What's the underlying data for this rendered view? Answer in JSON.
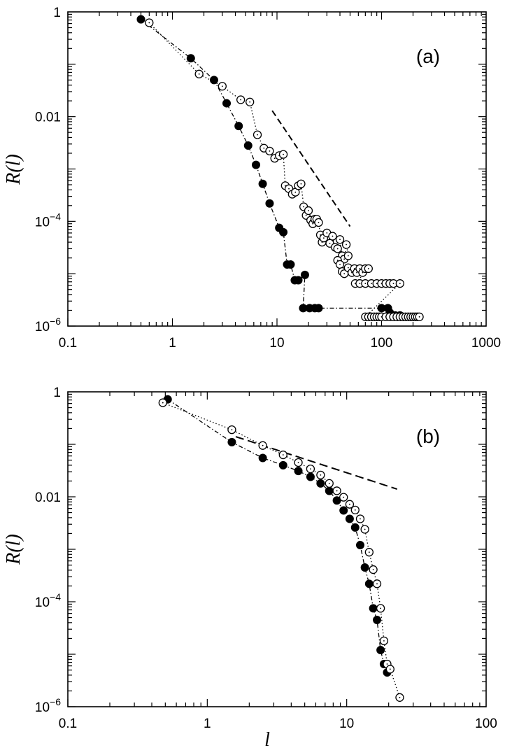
{
  "chart_data": [
    {
      "type": "scatter",
      "panel_label": "(a)",
      "xscale": "log",
      "yscale": "log",
      "xlim": [
        0.1,
        1000
      ],
      "ylim": [
        1e-06,
        1
      ],
      "xticks": [
        "0.1",
        "1",
        "10",
        "100",
        "1000"
      ],
      "yticks": [
        {
          "value": 1,
          "base": "1",
          "exp": ""
        },
        {
          "value": 0.01,
          "base": "0.01",
          "exp": ""
        },
        {
          "value": 0.0001,
          "base": "10",
          "exp": "−4"
        },
        {
          "value": 1e-06,
          "base": "10",
          "exp": "−6"
        }
      ],
      "ylabel": "R(l)",
      "xlabel": "",
      "grid": false,
      "series": [
        {
          "marker": "filled-circle",
          "line": "dash-dot",
          "points": [
            [
              0.5,
              0.72
            ],
            [
              1.5,
              0.13
            ],
            [
              2.5,
              0.05
            ],
            [
              3.3,
              0.018
            ],
            [
              4.3,
              0.0066
            ],
            [
              5.3,
              0.0028
            ],
            [
              6.3,
              0.0012
            ],
            [
              7.3,
              0.00052
            ],
            [
              8.5,
              0.00022
            ],
            [
              10.5,
              7.5e-05
            ],
            [
              11.5,
              6.2e-05
            ],
            [
              12.5,
              1.5e-05
            ],
            [
              13.5,
              1.5e-05
            ],
            [
              14.8,
              7.5e-06
            ],
            [
              16,
              7.5e-06
            ],
            [
              18.5,
              9.5e-06
            ],
            [
              17.8,
              2.2e-06
            ],
            [
              20.5,
              2.2e-06
            ],
            [
              23,
              2.2e-06
            ],
            [
              25,
              2.2e-06
            ],
            [
              100,
              2.2e-06
            ],
            [
              115,
              2.2e-06
            ],
            [
              120,
              1.8e-06
            ],
            [
              135,
              1.6e-06
            ],
            [
              150,
              1.6e-06
            ]
          ]
        },
        {
          "marker": "open-circle",
          "line": "dotted",
          "points": [
            [
              0.6,
              0.62
            ],
            [
              1.8,
              0.065
            ],
            [
              3.0,
              0.038
            ],
            [
              4.5,
              0.021
            ],
            [
              5.5,
              0.019
            ],
            [
              6.5,
              0.0045
            ],
            [
              7.5,
              0.0025
            ],
            [
              8.5,
              0.0022
            ],
            [
              9.5,
              0.0016
            ],
            [
              10.5,
              0.0018
            ],
            [
              11.5,
              0.0019
            ],
            [
              12,
              0.00048
            ],
            [
              13,
              0.00042
            ],
            [
              14,
              0.00033
            ],
            [
              15,
              0.00036
            ],
            [
              16,
              0.00048
            ],
            [
              17,
              0.00052
            ],
            [
              18,
              0.00019
            ],
            [
              19,
              0.00013
            ],
            [
              20,
              0.00016
            ],
            [
              21,
              0.000105
            ],
            [
              22,
              9e-05
            ],
            [
              23,
              0.00011
            ],
            [
              24,
              0.00011
            ],
            [
              25,
              9.5e-05
            ],
            [
              26,
              5.5e-05
            ],
            [
              27,
              4e-05
            ],
            [
              28,
              4.8e-05
            ],
            [
              30,
              6e-05
            ],
            [
              32,
              3.8e-05
            ],
            [
              34,
              5.2e-05
            ],
            [
              36,
              3.2e-05
            ],
            [
              38,
              3e-05
            ],
            [
              40,
              4.5e-05
            ],
            [
              42,
              2.2e-05
            ],
            [
              44,
              1.9e-05
            ],
            [
              46,
              3.6e-05
            ],
            [
              48,
              2.2e-05
            ],
            [
              38,
              1.8e-05
            ],
            [
              40,
              1.5e-05
            ],
            [
              42,
              1.1e-05
            ],
            [
              44,
              1e-05
            ],
            [
              48,
              1.3e-05
            ],
            [
              52,
              1.05e-05
            ],
            [
              55,
              1.25e-05
            ],
            [
              58,
              1.05e-05
            ],
            [
              62,
              1.25e-05
            ],
            [
              66,
              1.05e-05
            ],
            [
              70,
              1.25e-05
            ],
            [
              75,
              1.25e-05
            ],
            [
              56,
              6.5e-06
            ],
            [
              62,
              6.5e-06
            ],
            [
              70,
              6.5e-06
            ],
            [
              80,
              6.5e-06
            ],
            [
              90,
              6.5e-06
            ],
            [
              100,
              6.5e-06
            ],
            [
              110,
              6.5e-06
            ],
            [
              120,
              6.5e-06
            ],
            [
              130,
              6.5e-06
            ],
            [
              150,
              6.5e-06
            ],
            [
              70,
              1.5e-06
            ],
            [
              75,
              1.5e-06
            ],
            [
              80,
              1.5e-06
            ],
            [
              85,
              1.5e-06
            ],
            [
              90,
              1.5e-06
            ],
            [
              95,
              1.5e-06
            ],
            [
              100,
              1.5e-06
            ],
            [
              110,
              1.5e-06
            ],
            [
              120,
              1.5e-06
            ],
            [
              130,
              1.5e-06
            ],
            [
              140,
              1.5e-06
            ],
            [
              150,
              1.5e-06
            ],
            [
              160,
              1.5e-06
            ],
            [
              170,
              1.5e-06
            ],
            [
              180,
              1.5e-06
            ],
            [
              190,
              1.5e-06
            ],
            [
              200,
              1.5e-06
            ],
            [
              210,
              1.5e-06
            ],
            [
              220,
              1.5e-06
            ],
            [
              230,
              1.5e-06
            ]
          ]
        }
      ],
      "reference_line": {
        "style": "dashed",
        "points": [
          [
            9,
            0.013
          ],
          [
            50,
            8e-05
          ]
        ]
      }
    },
    {
      "type": "scatter",
      "panel_label": "(b)",
      "xscale": "log",
      "yscale": "log",
      "xlim": [
        0.1,
        100
      ],
      "ylim": [
        1e-06,
        1
      ],
      "xticks": [
        "0.1",
        "1",
        "10",
        "100"
      ],
      "yticks": [
        {
          "value": 1,
          "base": "1",
          "exp": ""
        },
        {
          "value": 0.01,
          "base": "0.01",
          "exp": ""
        },
        {
          "value": 0.0001,
          "base": "10",
          "exp": "−4"
        },
        {
          "value": 1e-06,
          "base": "10",
          "exp": "−6"
        }
      ],
      "ylabel": "R(l)",
      "xlabel": "l",
      "grid": false,
      "series": [
        {
          "marker": "filled-circle",
          "line": "dash-dot",
          "points": [
            [
              0.52,
              0.72
            ],
            [
              1.5,
              0.11
            ],
            [
              2.5,
              0.055
            ],
            [
              3.5,
              0.04
            ],
            [
              4.5,
              0.031
            ],
            [
              5.5,
              0.024
            ],
            [
              6.5,
              0.018
            ],
            [
              7.5,
              0.013
            ],
            [
              8.5,
              0.0085
            ],
            [
              9.5,
              0.0055
            ],
            [
              10.5,
              0.0038
            ],
            [
              11.5,
              0.0026
            ],
            [
              12.5,
              0.0012
            ],
            [
              13.5,
              0.00045
            ],
            [
              14.5,
              0.00022
            ],
            [
              15.5,
              7.5e-05
            ],
            [
              16.5,
              4.5e-05
            ],
            [
              17.5,
              1.2e-05
            ],
            [
              18.5,
              6.5e-06
            ],
            [
              19.5,
              4.5e-06
            ]
          ]
        },
        {
          "marker": "open-circle",
          "line": "dotted",
          "points": [
            [
              0.48,
              0.62
            ],
            [
              1.5,
              0.19
            ],
            [
              2.5,
              0.095
            ],
            [
              3.5,
              0.063
            ],
            [
              4.5,
              0.045
            ],
            [
              5.5,
              0.034
            ],
            [
              6.5,
              0.026
            ],
            [
              7.5,
              0.018
            ],
            [
              8.5,
              0.013
            ],
            [
              9.5,
              0.0098
            ],
            [
              10.5,
              0.0072
            ],
            [
              11.5,
              0.0056
            ],
            [
              12.5,
              0.0038
            ],
            [
              13.5,
              0.0024
            ],
            [
              14.5,
              0.00088
            ],
            [
              15.5,
              0.00041
            ],
            [
              16.5,
              0.00022
            ],
            [
              17.5,
              7.5e-05
            ],
            [
              18.5,
              1.8e-05
            ],
            [
              19.5,
              6.5e-06
            ],
            [
              20.5,
              5.2e-06
            ],
            [
              24,
              1.5e-06
            ]
          ]
        }
      ],
      "reference_line": {
        "style": "dashed",
        "points": [
          [
            1.6,
            0.14
          ],
          [
            23,
            0.014
          ]
        ]
      }
    }
  ]
}
